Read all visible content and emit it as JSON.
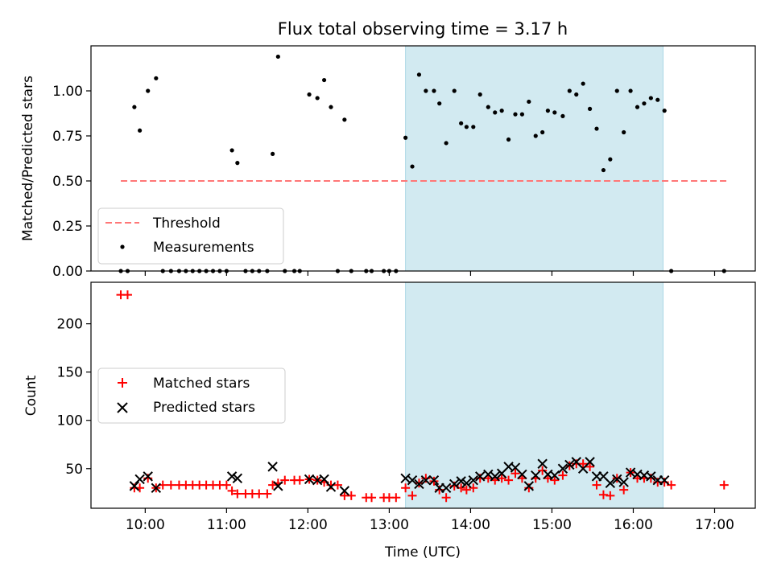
{
  "chart_data": {
    "title": "Flux total observing time = 3.17 h",
    "x_axis": {
      "label": "Time (UTC)",
      "range": [
        "09:20",
        "17:30"
      ],
      "ticks": [
        "10:00",
        "11:00",
        "12:00",
        "13:00",
        "14:00",
        "15:00",
        "16:00",
        "17:00"
      ]
    },
    "shaded_interval": {
      "start": "13:12",
      "end": "16:22",
      "color": "#add8e6"
    },
    "panels": [
      {
        "type": "scatter",
        "ylabel": "Matched/Predicted stars",
        "ylim": [
          0,
          1.25
        ],
        "yticks": [
          "0.00",
          "0.25",
          "0.50",
          "0.75",
          "1.00"
        ],
        "yticks_values": [
          0,
          0.25,
          0.5,
          0.75,
          1.0
        ],
        "legend": {
          "position": "lower-left",
          "entries": [
            "Threshold",
            "Measurements"
          ]
        },
        "threshold": {
          "name": "Threshold",
          "value": 0.5,
          "x_range": [
            "09:42",
            "17:10"
          ],
          "color": "#ff7777"
        },
        "series": [
          {
            "name": "Measurements",
            "marker": "dot",
            "color": "#000000",
            "points": [
              [
                "09:42",
                0.0
              ],
              [
                "09:47",
                0.0
              ],
              [
                "09:52",
                0.91
              ],
              [
                "09:56",
                0.78
              ],
              [
                "10:02",
                1.0
              ],
              [
                "10:08",
                1.07
              ],
              [
                "10:13",
                0.0
              ],
              [
                "10:19",
                0.0
              ],
              [
                "10:25",
                0.0
              ],
              [
                "10:30",
                0.0
              ],
              [
                "10:35",
                0.0
              ],
              [
                "10:40",
                0.0
              ],
              [
                "10:45",
                0.0
              ],
              [
                "10:50",
                0.0
              ],
              [
                "10:55",
                0.0
              ],
              [
                "11:00",
                0.0
              ],
              [
                "11:04",
                0.67
              ],
              [
                "11:08",
                0.6
              ],
              [
                "11:14",
                0.0
              ],
              [
                "11:19",
                0.0
              ],
              [
                "11:24",
                0.0
              ],
              [
                "11:30",
                0.0
              ],
              [
                "11:34",
                0.65
              ],
              [
                "11:38",
                1.19
              ],
              [
                "11:43",
                0.0
              ],
              [
                "11:50",
                0.0
              ],
              [
                "11:54",
                0.0
              ],
              [
                "12:01",
                0.98
              ],
              [
                "12:07",
                0.96
              ],
              [
                "12:12",
                1.06
              ],
              [
                "12:17",
                0.91
              ],
              [
                "12:22",
                0.0
              ],
              [
                "12:27",
                0.84
              ],
              [
                "12:32",
                0.0
              ],
              [
                "12:43",
                0.0
              ],
              [
                "12:47",
                0.0
              ],
              [
                "12:56",
                0.0
              ],
              [
                "13:00",
                0.0
              ],
              [
                "13:05",
                0.0
              ],
              [
                "13:12",
                0.74
              ],
              [
                "13:17",
                0.58
              ],
              [
                "13:22",
                1.09
              ],
              [
                "13:27",
                1.0
              ],
              [
                "13:33",
                1.0
              ],
              [
                "13:37",
                0.93
              ],
              [
                "13:42",
                0.71
              ],
              [
                "13:48",
                1.0
              ],
              [
                "13:53",
                0.82
              ],
              [
                "13:57",
                0.8
              ],
              [
                "14:02",
                0.8
              ],
              [
                "14:07",
                0.98
              ],
              [
                "14:13",
                0.91
              ],
              [
                "14:18",
                0.88
              ],
              [
                "14:23",
                0.89
              ],
              [
                "14:28",
                0.73
              ],
              [
                "14:33",
                0.87
              ],
              [
                "14:38",
                0.87
              ],
              [
                "14:43",
                0.94
              ],
              [
                "14:48",
                0.75
              ],
              [
                "14:53",
                0.77
              ],
              [
                "14:57",
                0.89
              ],
              [
                "15:02",
                0.88
              ],
              [
                "15:08",
                0.86
              ],
              [
                "15:13",
                1.0
              ],
              [
                "15:18",
                0.98
              ],
              [
                "15:23",
                1.04
              ],
              [
                "15:28",
                0.9
              ],
              [
                "15:33",
                0.79
              ],
              [
                "15:38",
                0.56
              ],
              [
                "15:43",
                0.62
              ],
              [
                "15:48",
                1.0
              ],
              [
                "15:53",
                0.77
              ],
              [
                "15:58",
                1.0
              ],
              [
                "16:03",
                0.91
              ],
              [
                "16:08",
                0.93
              ],
              [
                "16:13",
                0.96
              ],
              [
                "16:18",
                0.95
              ],
              [
                "16:23",
                0.89
              ],
              [
                "16:28",
                0.0
              ],
              [
                "17:07",
                0.0
              ]
            ]
          }
        ]
      },
      {
        "type": "scatter",
        "ylabel": "Count",
        "ylim": [
          9,
          243
        ],
        "yticks": [
          "50",
          "100",
          "150",
          "200"
        ],
        "yticks_values": [
          50,
          100,
          150,
          200
        ],
        "legend": {
          "position": "center-left",
          "entries": [
            "Matched stars",
            "Predicted stars"
          ]
        },
        "series": [
          {
            "name": "Matched stars",
            "marker": "plus",
            "color": "#ff0000",
            "points": [
              [
                "09:42",
                230
              ],
              [
                "09:47",
                230
              ],
              [
                "09:52",
                30
              ],
              [
                "09:56",
                30
              ],
              [
                "10:02",
                40
              ],
              [
                "10:08",
                30
              ],
              [
                "10:13",
                33
              ],
              [
                "10:19",
                33
              ],
              [
                "10:25",
                33
              ],
              [
                "10:30",
                33
              ],
              [
                "10:35",
                33
              ],
              [
                "10:40",
                33
              ],
              [
                "10:45",
                33
              ],
              [
                "10:50",
                33
              ],
              [
                "10:55",
                33
              ],
              [
                "11:00",
                33
              ],
              [
                "11:04",
                27
              ],
              [
                "11:08",
                24
              ],
              [
                "11:14",
                24
              ],
              [
                "11:19",
                24
              ],
              [
                "11:24",
                24
              ],
              [
                "11:30",
                24
              ],
              [
                "11:34",
                33
              ],
              [
                "11:38",
                35
              ],
              [
                "11:43",
                38
              ],
              [
                "11:50",
                38
              ],
              [
                "11:54",
                38
              ],
              [
                "12:01",
                39
              ],
              [
                "12:07",
                38
              ],
              [
                "12:12",
                36
              ],
              [
                "12:17",
                33
              ],
              [
                "12:22",
                33
              ],
              [
                "12:27",
                22
              ],
              [
                "12:32",
                22
              ],
              [
                "12:43",
                20
              ],
              [
                "12:47",
                20
              ],
              [
                "12:56",
                20
              ],
              [
                "13:00",
                20
              ],
              [
                "13:05",
                20
              ],
              [
                "13:12",
                30
              ],
              [
                "13:17",
                22
              ],
              [
                "13:22",
                35
              ],
              [
                "13:27",
                40
              ],
              [
                "13:33",
                37
              ],
              [
                "13:37",
                28
              ],
              [
                "13:42",
                20
              ],
              [
                "13:48",
                32
              ],
              [
                "13:53",
                30
              ],
              [
                "13:57",
                28
              ],
              [
                "14:02",
                30
              ],
              [
                "14:07",
                40
              ],
              [
                "14:13",
                40
              ],
              [
                "14:18",
                38
              ],
              [
                "14:23",
                40
              ],
              [
                "14:28",
                38
              ],
              [
                "14:33",
                45
              ],
              [
                "14:38",
                40
              ],
              [
                "14:43",
                30
              ],
              [
                "14:48",
                40
              ],
              [
                "14:53",
                48
              ],
              [
                "14:57",
                40
              ],
              [
                "15:02",
                38
              ],
              [
                "15:08",
                43
              ],
              [
                "15:13",
                53
              ],
              [
                "15:18",
                55
              ],
              [
                "15:23",
                55
              ],
              [
                "15:28",
                52
              ],
              [
                "15:33",
                33
              ],
              [
                "15:38",
                23
              ],
              [
                "15:43",
                22
              ],
              [
                "15:48",
                40
              ],
              [
                "15:53",
                28
              ],
              [
                "15:58",
                46
              ],
              [
                "16:03",
                40
              ],
              [
                "16:08",
                40
              ],
              [
                "16:13",
                40
              ],
              [
                "16:18",
                36
              ],
              [
                "16:23",
                36
              ],
              [
                "16:28",
                33
              ],
              [
                "17:07",
                33
              ]
            ]
          },
          {
            "name": "Predicted stars",
            "marker": "x",
            "color": "#000000",
            "points": [
              [
                "09:52",
                32
              ],
              [
                "09:56",
                39
              ],
              [
                "10:02",
                42
              ],
              [
                "10:08",
                30
              ],
              [
                "11:04",
                42
              ],
              [
                "11:08",
                40
              ],
              [
                "11:34",
                52
              ],
              [
                "11:38",
                32
              ],
              [
                "12:01",
                39
              ],
              [
                "12:07",
                38
              ],
              [
                "12:12",
                39
              ],
              [
                "12:17",
                31
              ],
              [
                "12:27",
                27
              ],
              [
                "13:12",
                40
              ],
              [
                "13:17",
                38
              ],
              [
                "13:22",
                34
              ],
              [
                "13:27",
                38
              ],
              [
                "13:33",
                38
              ],
              [
                "13:37",
                30
              ],
              [
                "13:42",
                30
              ],
              [
                "13:48",
                34
              ],
              [
                "13:53",
                37
              ],
              [
                "13:57",
                35
              ],
              [
                "14:02",
                38
              ],
              [
                "14:07",
                42
              ],
              [
                "14:13",
                44
              ],
              [
                "14:18",
                42
              ],
              [
                "14:23",
                45
              ],
              [
                "14:28",
                52
              ],
              [
                "14:33",
                51
              ],
              [
                "14:38",
                44
              ],
              [
                "14:43",
                32
              ],
              [
                "14:48",
                43
              ],
              [
                "14:53",
                55
              ],
              [
                "14:57",
                44
              ],
              [
                "15:02",
                43
              ],
              [
                "15:08",
                50
              ],
              [
                "15:13",
                54
              ],
              [
                "15:18",
                57
              ],
              [
                "15:23",
                50
              ],
              [
                "15:28",
                57
              ],
              [
                "15:33",
                42
              ],
              [
                "15:38",
                42
              ],
              [
                "15:43",
                35
              ],
              [
                "15:48",
                39
              ],
              [
                "15:53",
                36
              ],
              [
                "15:58",
                46
              ],
              [
                "16:03",
                44
              ],
              [
                "16:08",
                43
              ],
              [
                "16:13",
                42
              ],
              [
                "16:18",
                38
              ],
              [
                "16:23",
                38
              ]
            ]
          }
        ]
      }
    ]
  }
}
